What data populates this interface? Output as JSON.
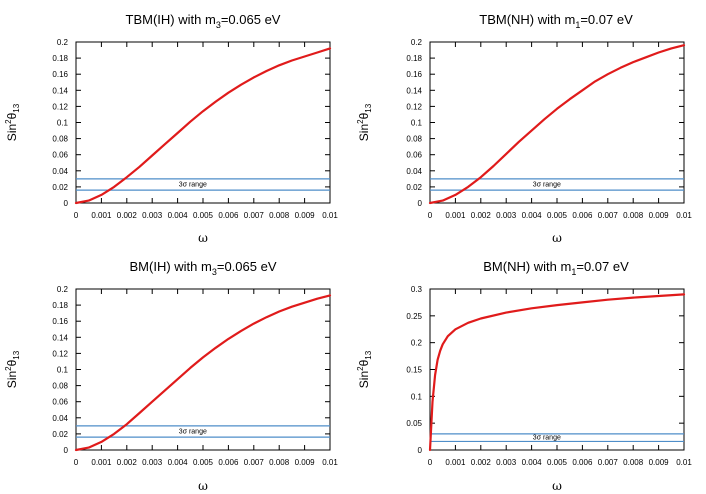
{
  "chart_data": [
    {
      "type": "line",
      "title": "TBM(IH) with m₃=0.065 eV",
      "title_parts": [
        "TBM(IH) with m",
        "3",
        "=0.065 eV"
      ],
      "xlabel": "ω",
      "ylabel": "Sin²θ₁₃",
      "ylabel_parts": [
        "Sin",
        "2",
        "θ",
        "13"
      ],
      "xlim": [
        0,
        0.01
      ],
      "ylim": [
        0,
        0.2
      ],
      "xticks": [
        "0",
        "0.001",
        "0.002",
        "0.003",
        "0.004",
        "0.005",
        "0.006",
        "0.007",
        "0.008",
        "0.009",
        "0.01"
      ],
      "yticks": [
        "0",
        "0.02",
        "0.04",
        "0.06",
        "0.08",
        "0.1",
        "0.12",
        "0.14",
        "0.16",
        "0.18",
        "0.2"
      ],
      "x": [
        0,
        0.0005,
        0.001,
        0.0015,
        0.002,
        0.0025,
        0.003,
        0.0035,
        0.004,
        0.0045,
        0.005,
        0.0055,
        0.006,
        0.0065,
        0.007,
        0.0075,
        0.008,
        0.0085,
        0.009,
        0.0095,
        0.01
      ],
      "y": [
        0,
        0.003,
        0.01,
        0.02,
        0.032,
        0.045,
        0.059,
        0.073,
        0.087,
        0.101,
        0.114,
        0.126,
        0.137,
        0.147,
        0.156,
        0.164,
        0.171,
        0.177,
        0.182,
        0.187,
        0.192
      ],
      "band": {
        "label": "3σ range",
        "lower": 0.016,
        "upper": 0.03
      },
      "line_color": "#e01b1b",
      "band_color": "#4f8ec9",
      "grid": false
    },
    {
      "type": "line",
      "title": "TBM(NH) with m₁=0.07 eV",
      "title_parts": [
        "TBM(NH) with m",
        "1",
        "=0.07 eV"
      ],
      "xlabel": "ω",
      "ylabel": "Sin²θ₁₃",
      "ylabel_parts": [
        "Sin",
        "2",
        "θ",
        "13"
      ],
      "xlim": [
        0,
        0.01
      ],
      "ylim": [
        0,
        0.2
      ],
      "xticks": [
        "0",
        "0.001",
        "0.002",
        "0.003",
        "0.004",
        "0.005",
        "0.006",
        "0.007",
        "0.008",
        "0.009",
        "0.01"
      ],
      "yticks": [
        "0",
        "0.02",
        "0.04",
        "0.06",
        "0.08",
        "0.1",
        "0.12",
        "0.14",
        "0.16",
        "0.18",
        "0.2"
      ],
      "x": [
        0,
        0.0005,
        0.001,
        0.0015,
        0.002,
        0.0025,
        0.003,
        0.0035,
        0.004,
        0.0045,
        0.005,
        0.0055,
        0.006,
        0.0065,
        0.007,
        0.0075,
        0.008,
        0.0085,
        0.009,
        0.0095,
        0.01
      ],
      "y": [
        0,
        0.003,
        0.01,
        0.02,
        0.032,
        0.046,
        0.061,
        0.076,
        0.09,
        0.104,
        0.117,
        0.129,
        0.14,
        0.151,
        0.16,
        0.168,
        0.175,
        0.181,
        0.187,
        0.192,
        0.196
      ],
      "band": {
        "label": "3σ range",
        "lower": 0.016,
        "upper": 0.03
      },
      "line_color": "#e01b1b",
      "band_color": "#4f8ec9",
      "grid": false
    },
    {
      "type": "line",
      "title": "BM(IH) with m₃=0.065 eV",
      "title_parts": [
        "BM(IH) with m",
        "3",
        "=0.065 eV"
      ],
      "xlabel": "ω",
      "ylabel": "Sin²θ₁₃",
      "ylabel_parts": [
        "Sin",
        "2",
        "θ",
        "13"
      ],
      "xlim": [
        0,
        0.01
      ],
      "ylim": [
        0,
        0.2
      ],
      "xticks": [
        "0",
        "0.001",
        "0.002",
        "0.003",
        "0.004",
        "0.005",
        "0.006",
        "0.007",
        "0.008",
        "0.009",
        "0.01"
      ],
      "yticks": [
        "0",
        "0.02",
        "0.04",
        "0.06",
        "0.08",
        "0.1",
        "0.12",
        "0.14",
        "0.16",
        "0.18",
        "0.2"
      ],
      "x": [
        0,
        0.0005,
        0.001,
        0.0015,
        0.002,
        0.0025,
        0.003,
        0.0035,
        0.004,
        0.0045,
        0.005,
        0.0055,
        0.006,
        0.0065,
        0.007,
        0.0075,
        0.008,
        0.0085,
        0.009,
        0.0095,
        0.01
      ],
      "y": [
        0,
        0.003,
        0.01,
        0.02,
        0.032,
        0.046,
        0.06,
        0.074,
        0.088,
        0.102,
        0.115,
        0.127,
        0.138,
        0.148,
        0.157,
        0.165,
        0.172,
        0.178,
        0.183,
        0.188,
        0.192
      ],
      "band": {
        "label": "3σ range",
        "lower": 0.016,
        "upper": 0.03
      },
      "line_color": "#e01b1b",
      "band_color": "#4f8ec9",
      "grid": false
    },
    {
      "type": "line",
      "title": "BM(NH) with m₁=0.07 eV",
      "title_parts": [
        "BM(NH) with m",
        "1",
        "=0.07 eV"
      ],
      "xlabel": "ω",
      "ylabel": "Sin²θ₁₃",
      "ylabel_parts": [
        "Sin",
        "2",
        "θ",
        "13"
      ],
      "xlim": [
        0,
        0.01
      ],
      "ylim": [
        0,
        0.3
      ],
      "xticks": [
        "0",
        "0.001",
        "0.002",
        "0.003",
        "0.004",
        "0.005",
        "0.006",
        "0.007",
        "0.008",
        "0.009",
        "0.01"
      ],
      "yticks": [
        "0",
        "0.05",
        "0.1",
        "0.15",
        "0.2",
        "0.25",
        "0.3"
      ],
      "x": [
        0,
        0.0001,
        0.0002,
        0.0003,
        0.0004,
        0.0005,
        0.0007,
        0.001,
        0.0015,
        0.002,
        0.003,
        0.004,
        0.005,
        0.006,
        0.007,
        0.008,
        0.009,
        0.01
      ],
      "y": [
        0,
        0.09,
        0.14,
        0.168,
        0.185,
        0.197,
        0.212,
        0.225,
        0.237,
        0.245,
        0.256,
        0.264,
        0.27,
        0.275,
        0.28,
        0.284,
        0.287,
        0.29
      ],
      "band": {
        "label": "3σ range",
        "lower": 0.016,
        "upper": 0.03
      },
      "line_color": "#e01b1b",
      "band_color": "#4f8ec9",
      "grid": false
    }
  ]
}
